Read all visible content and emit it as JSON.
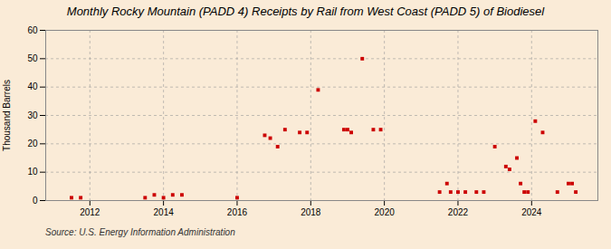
{
  "chart_data": {
    "type": "scatter",
    "title": "Monthly Rocky Mountain (PADD 4) Receipts by Rail from West Coast (PADD 5) of Biodiesel",
    "ylabel": "Thousand Barrels",
    "source": "Source: U.S. Energy Information Administration",
    "color": "#cc0000",
    "marker": "square",
    "grid": true,
    "xlim": [
      2010.8,
      2025.8
    ],
    "xticks": [
      2012,
      2014,
      2016,
      2018,
      2020,
      2022,
      2024
    ],
    "ylim": [
      0,
      60
    ],
    "yticks": [
      0,
      10,
      20,
      30,
      40,
      50,
      60
    ],
    "x": [
      2011.5,
      2011.75,
      2013.5,
      2013.75,
      2014.0,
      2014.25,
      2014.5,
      2016.0,
      2016.75,
      2016.9,
      2017.1,
      2017.3,
      2017.7,
      2017.9,
      2018.2,
      2018.9,
      2019.0,
      2019.1,
      2019.4,
      2019.7,
      2019.9,
      2021.5,
      2021.7,
      2021.8,
      2022.0,
      2022.2,
      2022.5,
      2022.7,
      2023.0,
      2023.3,
      2023.4,
      2023.6,
      2023.7,
      2023.8,
      2023.9,
      2024.1,
      2024.3,
      2024.7,
      2025.0,
      2025.1,
      2025.2
    ],
    "values": [
      1,
      1,
      1,
      2,
      1,
      2,
      2,
      1,
      23,
      22,
      19,
      25,
      24,
      24,
      39,
      25,
      25,
      24,
      50,
      25,
      25,
      3,
      6,
      3,
      3,
      3,
      3,
      3,
      19,
      12,
      11,
      15,
      6,
      3,
      3,
      28,
      24,
      3,
      6,
      6,
      3
    ]
  }
}
